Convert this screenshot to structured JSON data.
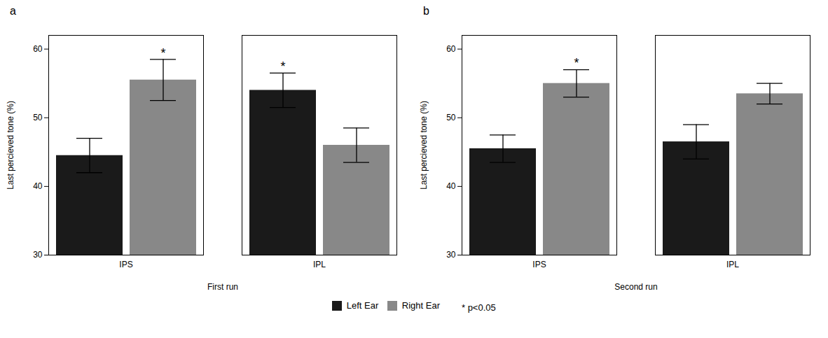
{
  "chart_data": [
    {
      "type": "bar",
      "title": "a",
      "xlabel": "First run",
      "categories": [
        "IPS",
        "IPL"
      ],
      "series": [
        {
          "name": "Left Ear",
          "color": "#1a1a1a",
          "values": [
            44.5,
            54.0
          ],
          "errors": [
            2.5,
            2.5
          ]
        },
        {
          "name": "Right Ear",
          "color": "#888888",
          "values": [
            55.5,
            46.0
          ],
          "errors": [
            3.0,
            2.5
          ]
        }
      ],
      "annotations": [
        {
          "text": "*",
          "category": "IPS",
          "series": "Right Ear"
        },
        {
          "text": "*",
          "category": "IPL",
          "series": "Left Ear"
        }
      ],
      "ylabel": "Last percieved tone (%)",
      "ylim": [
        30,
        62
      ],
      "yticks": [
        30,
        40,
        50,
        60
      ],
      "grid": false,
      "legend": "bottom"
    },
    {
      "type": "bar",
      "title": "b",
      "xlabel": "Second run",
      "categories": [
        "IPS",
        "IPL"
      ],
      "series": [
        {
          "name": "Left Ear",
          "color": "#1a1a1a",
          "values": [
            45.5,
            46.5
          ],
          "errors": [
            2.0,
            2.5
          ]
        },
        {
          "name": "Right Ear",
          "color": "#888888",
          "values": [
            55.0,
            53.5
          ],
          "errors": [
            2.0,
            1.5
          ]
        }
      ],
      "annotations": [
        {
          "text": "*",
          "category": "IPS",
          "series": "Right Ear"
        }
      ],
      "ylabel": "Last percieved tone (%)",
      "ylim": [
        30,
        62
      ],
      "yticks": [
        30,
        40,
        50,
        60
      ],
      "grid": false,
      "legend": "bottom"
    }
  ],
  "annotations": [
    {
      "text": "* p<0.05"
    }
  ]
}
